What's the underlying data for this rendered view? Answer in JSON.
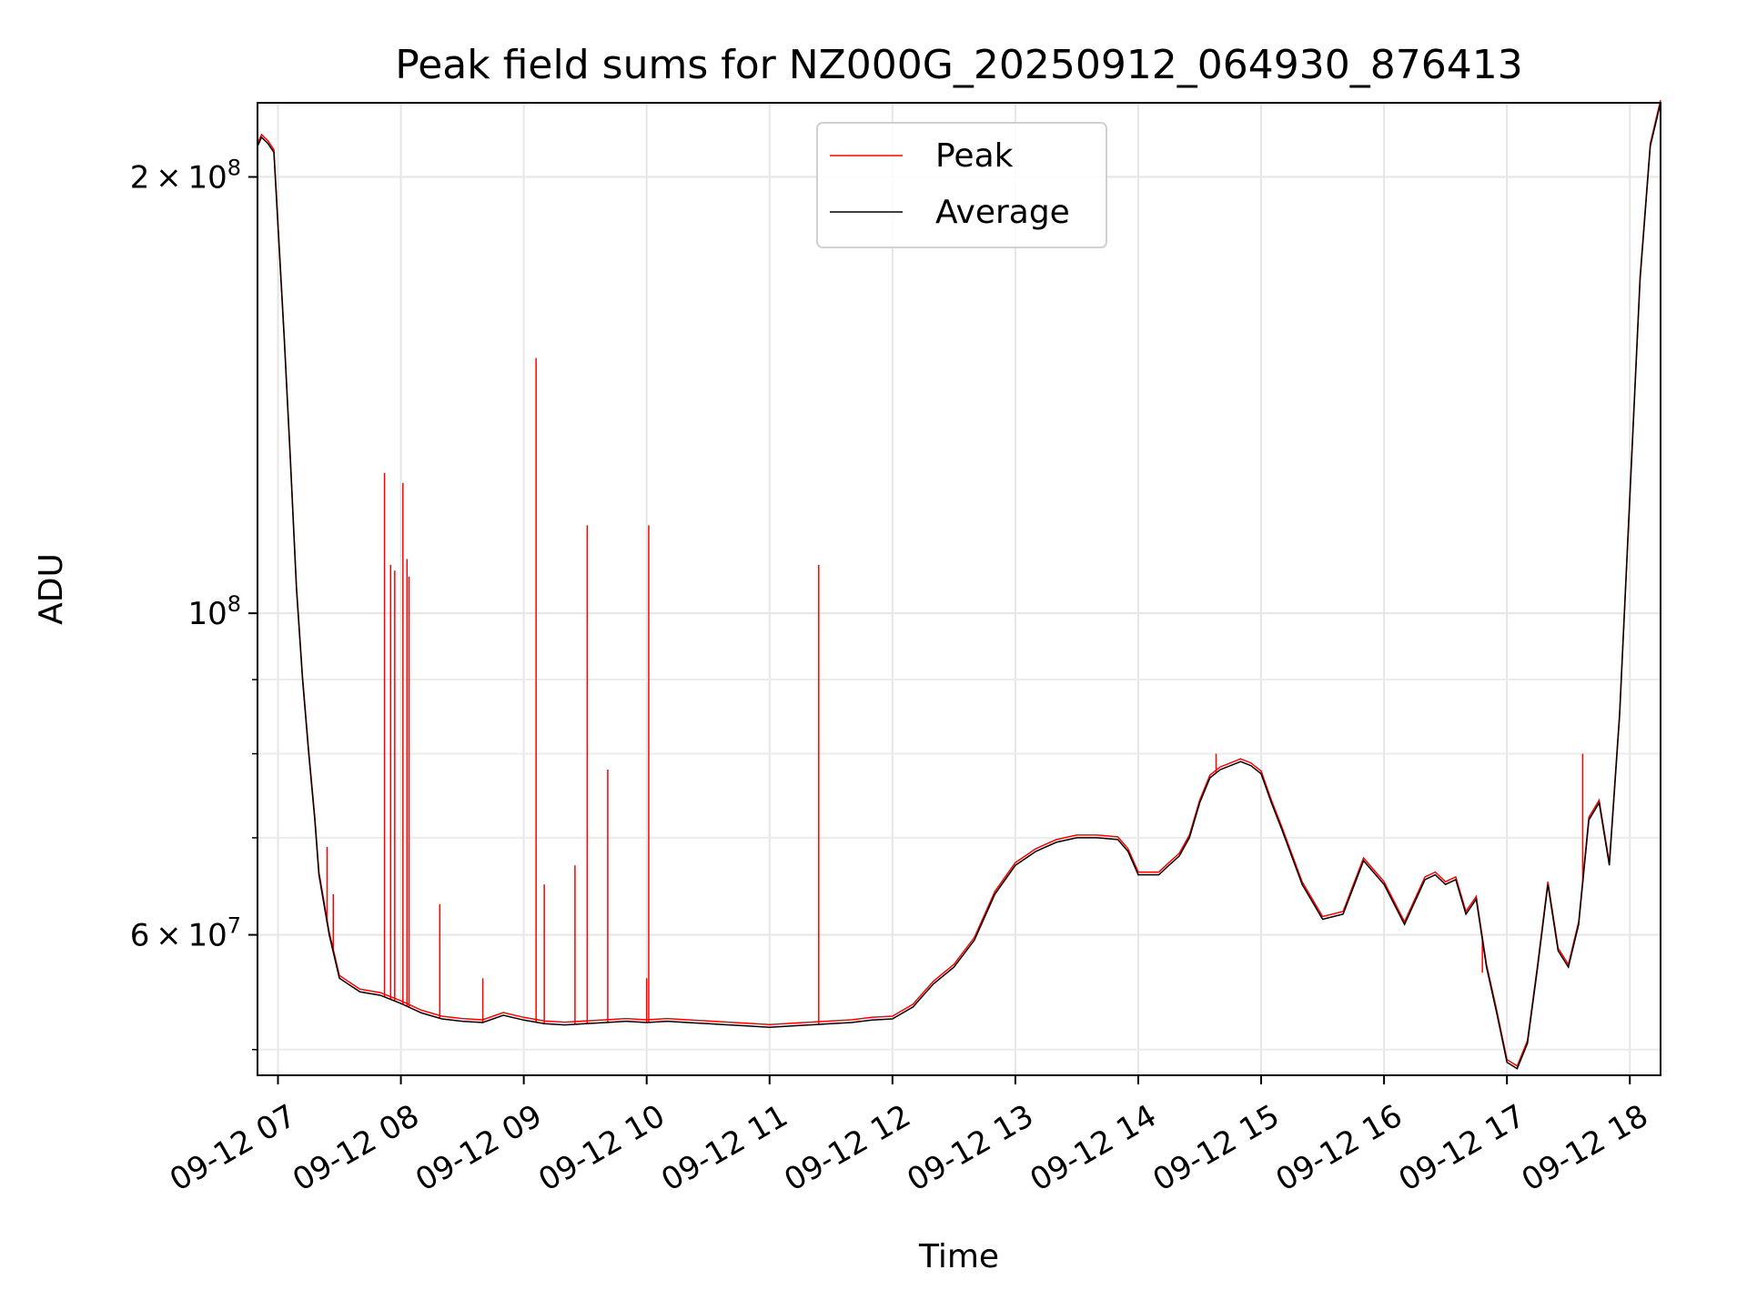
{
  "chart_data": {
    "type": "line",
    "title": "Peak field sums for NZ000G_20250912_064930_876413",
    "xlabel": "Time",
    "ylabel": "ADU",
    "y_scale": "log",
    "grid": true,
    "legend_position": "upper center",
    "xlim": [
      "09-12 06:50",
      "09-12 18:15"
    ],
    "ylim": [
      48000000,
      225000000
    ],
    "x_ticks": [
      {
        "value": "09-12 07:00",
        "label": "09-12 07"
      },
      {
        "value": "09-12 08:00",
        "label": "09-12 08"
      },
      {
        "value": "09-12 09:00",
        "label": "09-12 09"
      },
      {
        "value": "09-12 10:00",
        "label": "09-12 10"
      },
      {
        "value": "09-12 11:00",
        "label": "09-12 11"
      },
      {
        "value": "09-12 12:00",
        "label": "09-12 12"
      },
      {
        "value": "09-12 13:00",
        "label": "09-12 13"
      },
      {
        "value": "09-12 14:00",
        "label": "09-12 14"
      },
      {
        "value": "09-12 15:00",
        "label": "09-12 15"
      },
      {
        "value": "09-12 16:00",
        "label": "09-12 16"
      },
      {
        "value": "09-12 17:00",
        "label": "09-12 17"
      },
      {
        "value": "09-12 18:00",
        "label": "09-12 18"
      }
    ],
    "y_ticks": [
      {
        "value": 60000000,
        "mantissa": "6",
        "base": "10",
        "exponent": "7"
      },
      {
        "value": 100000000,
        "mantissa": "",
        "base": "10",
        "exponent": "8"
      },
      {
        "value": 200000000,
        "mantissa": "2",
        "base": "10",
        "exponent": "8"
      }
    ],
    "y_minor_ticks": [
      50000000,
      70000000,
      80000000,
      90000000
    ],
    "series": [
      {
        "name": "Average",
        "color": "#000000",
        "x": [
          "09-12 06:50",
          "09-12 06:52",
          "09-12 06:55",
          "09-12 06:58",
          "09-12 07:00",
          "09-12 07:03",
          "09-12 07:06",
          "09-12 07:09",
          "09-12 07:12",
          "09-12 07:15",
          "09-12 07:18",
          "09-12 07:20",
          "09-12 07:25",
          "09-12 07:30",
          "09-12 07:40",
          "09-12 07:50",
          "09-12 08:00",
          "09-12 08:10",
          "09-12 08:20",
          "09-12 08:30",
          "09-12 08:40",
          "09-12 08:50",
          "09-12 09:00",
          "09-12 09:10",
          "09-12 09:20",
          "09-12 09:30",
          "09-12 09:40",
          "09-12 09:50",
          "09-12 10:00",
          "09-12 10:10",
          "09-12 10:20",
          "09-12 10:30",
          "09-12 10:40",
          "09-12 10:50",
          "09-12 11:00",
          "09-12 11:10",
          "09-12 11:20",
          "09-12 11:30",
          "09-12 11:40",
          "09-12 11:50",
          "09-12 12:00",
          "09-12 12:10",
          "09-12 12:20",
          "09-12 12:30",
          "09-12 12:40",
          "09-12 12:50",
          "09-12 13:00",
          "09-12 13:10",
          "09-12 13:20",
          "09-12 13:30",
          "09-12 13:40",
          "09-12 13:50",
          "09-12 13:55",
          "09-12 14:00",
          "09-12 14:10",
          "09-12 14:15",
          "09-12 14:20",
          "09-12 14:25",
          "09-12 14:30",
          "09-12 14:35",
          "09-12 14:40",
          "09-12 14:50",
          "09-12 14:55",
          "09-12 15:00",
          "09-12 15:05",
          "09-12 15:10",
          "09-12 15:20",
          "09-12 15:30",
          "09-12 15:40",
          "09-12 15:50",
          "09-12 16:00",
          "09-12 16:10",
          "09-12 16:20",
          "09-12 16:25",
          "09-12 16:30",
          "09-12 16:35",
          "09-12 16:40",
          "09-12 16:45",
          "09-12 16:50",
          "09-12 16:55",
          "09-12 17:00",
          "09-12 17:05",
          "09-12 17:10",
          "09-12 17:15",
          "09-12 17:20",
          "09-12 17:25",
          "09-12 17:30",
          "09-12 17:35",
          "09-12 17:40",
          "09-12 17:45",
          "09-12 17:50",
          "09-12 17:55",
          "09-12 18:00",
          "09-12 18:05",
          "09-12 18:10",
          "09-12 18:15"
        ],
        "values": [
          210000000,
          213000000,
          211000000,
          208000000,
          185000000,
          155000000,
          128000000,
          104000000,
          90000000,
          80000000,
          72000000,
          66000000,
          60000000,
          56000000,
          54800000,
          54500000,
          53800000,
          53000000,
          52500000,
          52300000,
          52200000,
          52800000,
          52400000,
          52100000,
          52000000,
          52100000,
          52200000,
          52300000,
          52200000,
          52300000,
          52200000,
          52100000,
          52000000,
          51900000,
          51800000,
          51900000,
          52000000,
          52100000,
          52200000,
          52400000,
          52500000,
          53500000,
          55500000,
          57000000,
          59500000,
          64000000,
          67000000,
          68500000,
          69500000,
          70000000,
          70000000,
          69800000,
          68500000,
          66000000,
          66000000,
          67000000,
          68000000,
          70000000,
          74000000,
          77000000,
          78000000,
          79000000,
          78500000,
          77500000,
          74000000,
          71000000,
          65000000,
          61500000,
          62000000,
          67500000,
          65000000,
          61000000,
          65500000,
          66000000,
          65000000,
          65500000,
          62000000,
          63500000,
          57000000,
          53000000,
          49000000,
          48500000,
          50500000,
          57000000,
          65000000,
          58500000,
          57000000,
          61000000,
          72000000,
          74000000,
          67000000,
          85000000,
          120000000,
          170000000,
          210000000,
          225000000
        ]
      },
      {
        "name": "Peak",
        "color": "#ff0000",
        "spikes": [
          {
            "x": "09-12 07:24",
            "y": 69000000
          },
          {
            "x": "09-12 07:27",
            "y": 64000000
          },
          {
            "x": "09-12 07:52",
            "y": 125000000
          },
          {
            "x": "09-12 07:55",
            "y": 108000000
          },
          {
            "x": "09-12 07:57",
            "y": 107000000
          },
          {
            "x": "09-12 08:01",
            "y": 123000000
          },
          {
            "x": "09-12 08:03",
            "y": 109000000
          },
          {
            "x": "09-12 08:04",
            "y": 106000000
          },
          {
            "x": "09-12 08:19",
            "y": 63000000
          },
          {
            "x": "09-12 08:40",
            "y": 56000000
          },
          {
            "x": "09-12 09:06",
            "y": 150000000
          },
          {
            "x": "09-12 09:10",
            "y": 65000000
          },
          {
            "x": "09-12 09:25",
            "y": 67000000
          },
          {
            "x": "09-12 09:31",
            "y": 115000000
          },
          {
            "x": "09-12 09:41",
            "y": 78000000
          },
          {
            "x": "09-12 10:01",
            "y": 115000000
          },
          {
            "x": "09-12 10:00",
            "y": 56000000
          },
          {
            "x": "09-12 11:24",
            "y": 108000000
          },
          {
            "x": "09-12 17:37",
            "y": 80000000
          },
          {
            "x": "09-12 16:48",
            "y": 56500000
          },
          {
            "x": "09-12 14:38",
            "y": 80000000
          }
        ]
      }
    ]
  }
}
